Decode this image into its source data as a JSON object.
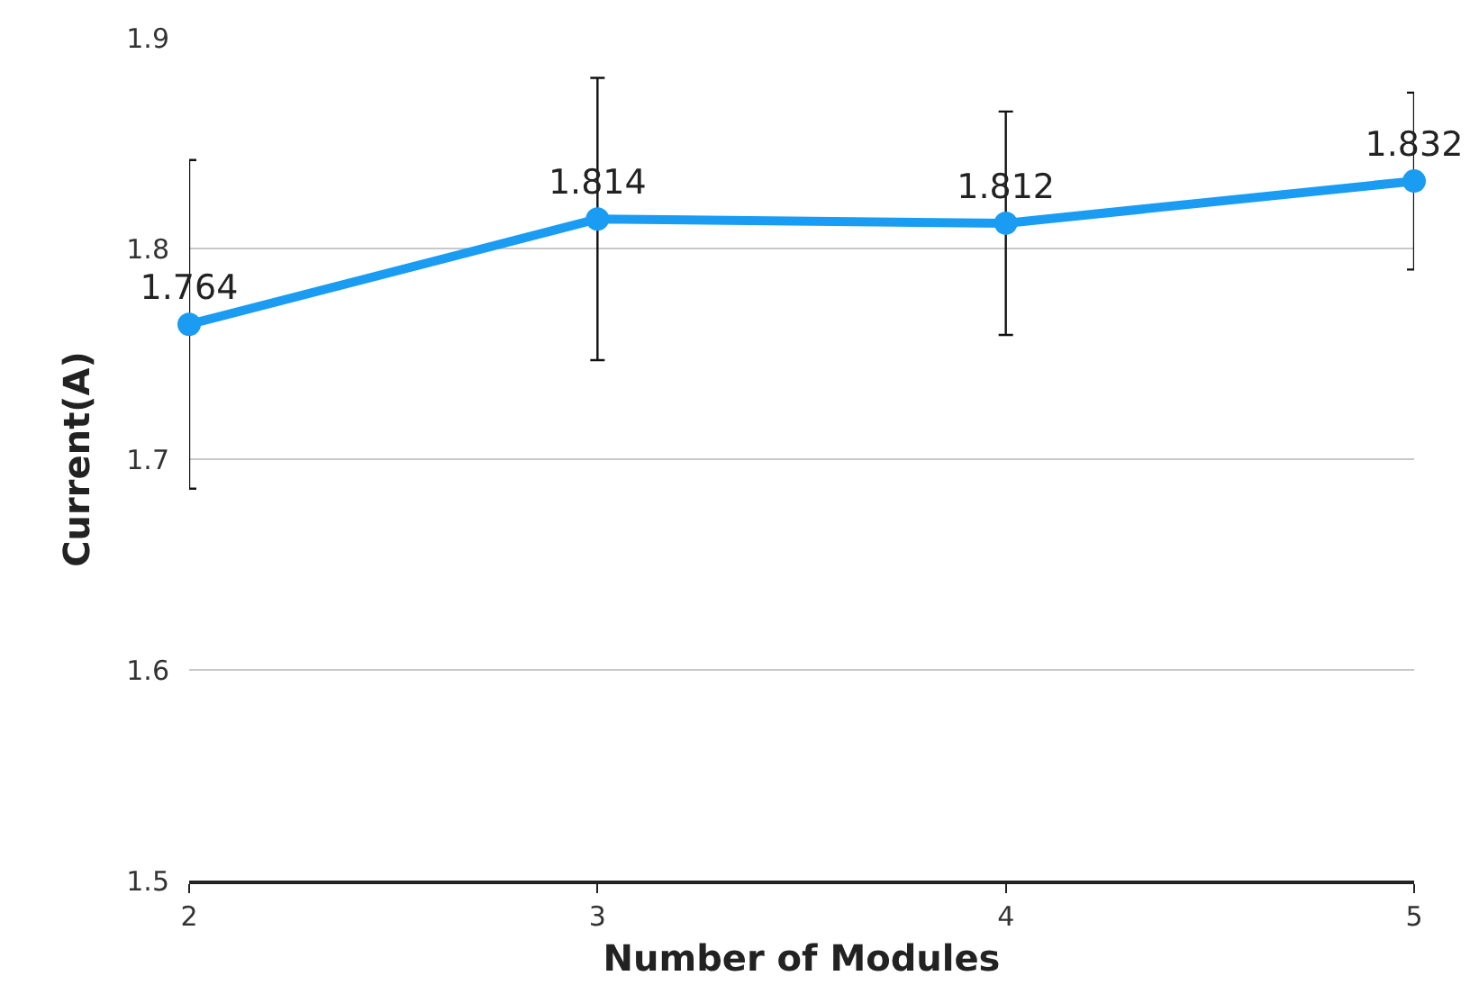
{
  "chart_data": {
    "type": "line",
    "xlabel": "Number of Modules",
    "ylabel": "Current(A)",
    "x": [
      2,
      3,
      4,
      5
    ],
    "series": [
      {
        "color": "#1a9cf2",
        "values": [
          1.764,
          1.814,
          1.812,
          1.832
        ],
        "errors": [
          0.078,
          0.067,
          0.053,
          0.042
        ]
      }
    ],
    "xlim": [
      2,
      5
    ],
    "xticks": [
      2,
      3,
      4,
      5
    ],
    "ylim": [
      1.5,
      1.9
    ],
    "yticks": [
      1.5,
      1.6,
      1.7,
      1.8,
      1.9
    ],
    "grid": "y",
    "marker": "circle",
    "line_style": "solid",
    "data_labels": true
  }
}
